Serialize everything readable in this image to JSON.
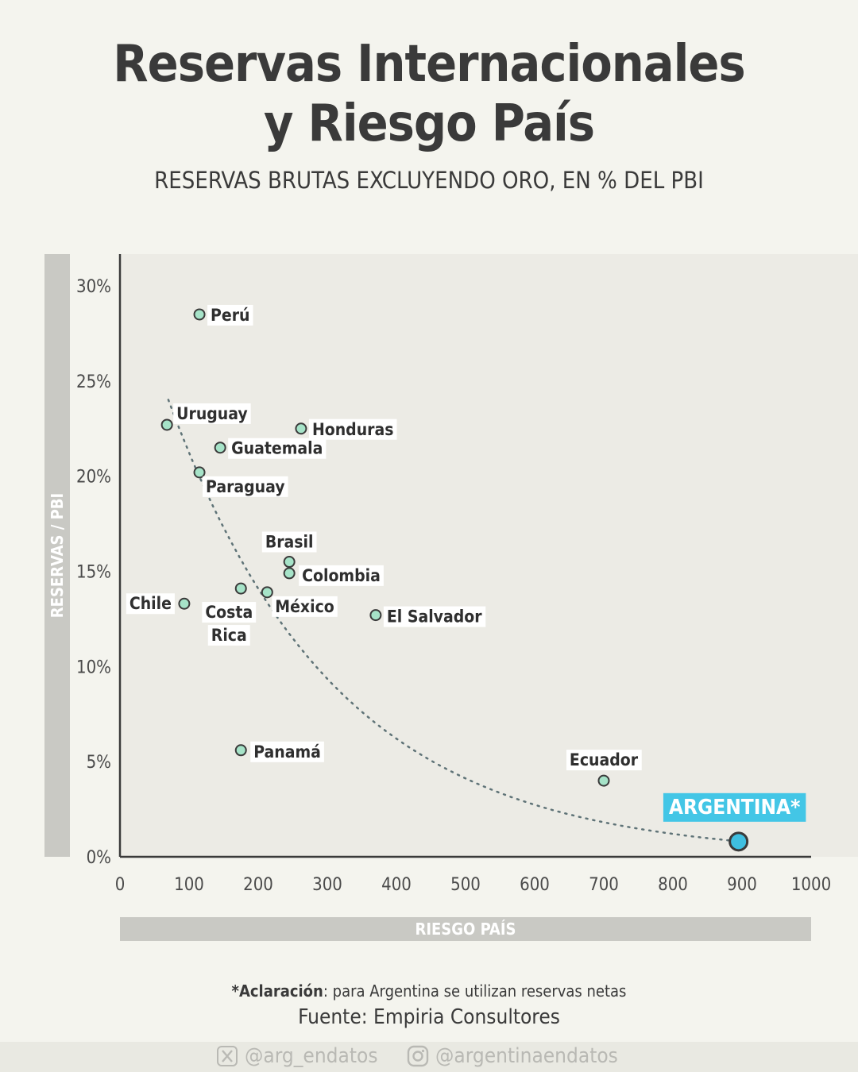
{
  "title_line1": "Reservas Internacionales",
  "title_line2": "y Riesgo País",
  "subtitle": "RESERVAS BRUTAS EXCLUYENDO ORO, EN % DEL PBI",
  "note": {
    "bold": "*Aclaración",
    "text": ": para Argentina se utilizan reservas netas"
  },
  "source": "Fuente: Empiria Consultores",
  "footer": {
    "x_handle": "@arg_endatos",
    "x_icon": "x-logo-icon",
    "instagram_handle": "@argentinaendatos",
    "instagram_icon": "instagram-icon"
  },
  "colors": {
    "background": "#f4f4ee",
    "plot_background": "#ecebe5",
    "point_fill": "#a6e3c8",
    "highlight_fill": "#3fbfe0",
    "highlight_label_bg": "#43c6e6",
    "axis_band": "#c9c9c4",
    "trend_line": "#5f7377"
  },
  "chart_data": {
    "type": "scatter",
    "xlabel": "RIESGO PAÍS",
    "ylabel": "RESERVAS / PBI",
    "xlim": [
      0,
      1000
    ],
    "ylim": [
      0,
      30
    ],
    "x_ticks": [
      0,
      100,
      200,
      300,
      400,
      500,
      600,
      700,
      800,
      900,
      1000
    ],
    "x_tick_labels": [
      "0",
      "100",
      "200",
      "300",
      "400",
      "500",
      "600",
      "700",
      "800",
      "900",
      "1000"
    ],
    "y_ticks": [
      0,
      5,
      10,
      15,
      20,
      25,
      30
    ],
    "y_tick_labels": [
      "0%",
      "5%",
      "10%",
      "15%",
      "20%",
      "25%",
      "30%"
    ],
    "grid": false,
    "trendline": "dotted exponential decay fit",
    "points": [
      {
        "name": "Perú",
        "x": 115,
        "y": 28.5
      },
      {
        "name": "Uruguay",
        "x": 68,
        "y": 22.7
      },
      {
        "name": "Honduras",
        "x": 262,
        "y": 22.5
      },
      {
        "name": "Guatemala",
        "x": 145,
        "y": 21.5
      },
      {
        "name": "Paraguay",
        "x": 115,
        "y": 20.2
      },
      {
        "name": "Brasil",
        "x": 245,
        "y": 15.5
      },
      {
        "name": "Colombia",
        "x": 245,
        "y": 14.9
      },
      {
        "name": "Costa Rica",
        "x": 175,
        "y": 14.1
      },
      {
        "name": "México",
        "x": 213,
        "y": 13.9
      },
      {
        "name": "Chile",
        "x": 93,
        "y": 13.3
      },
      {
        "name": "El Salvador",
        "x": 370,
        "y": 12.7
      },
      {
        "name": "Panamá",
        "x": 175,
        "y": 5.6
      },
      {
        "name": "Ecuador",
        "x": 700,
        "y": 4.0
      },
      {
        "name": "ARGENTINA*",
        "x": 895,
        "y": 0.8,
        "highlight": true
      }
    ]
  }
}
